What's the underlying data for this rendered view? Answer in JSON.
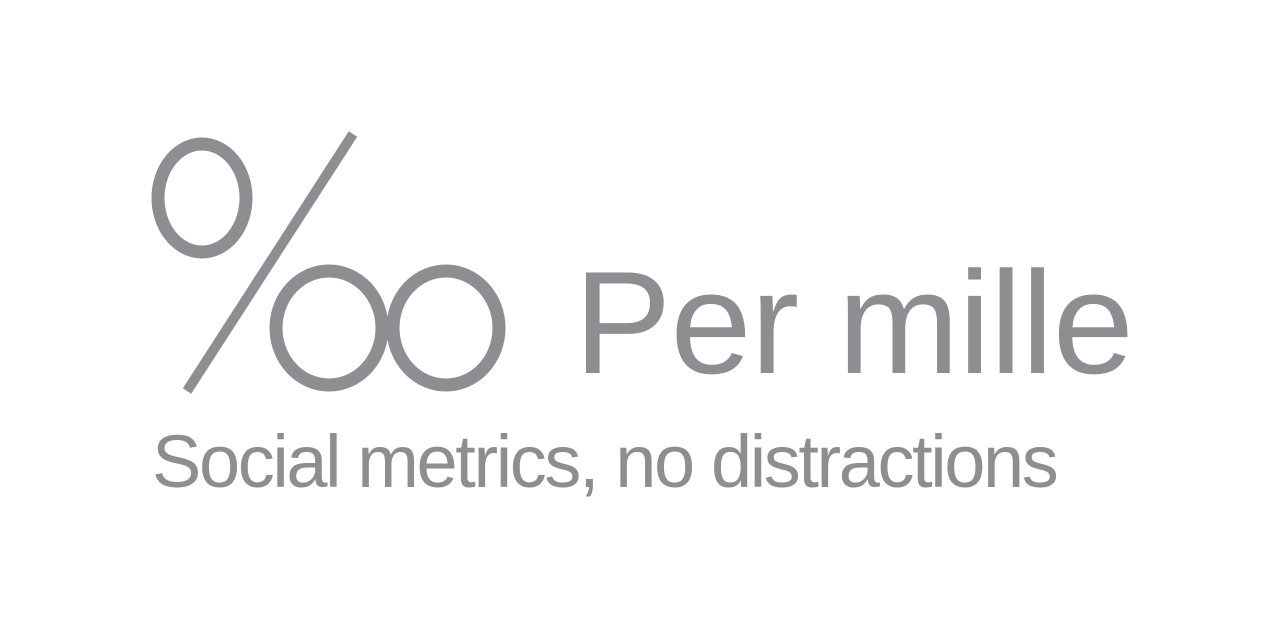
{
  "brand": {
    "symbol": "‰",
    "symbol_icon": "per-mille-sign-icon",
    "name": "Per mille",
    "tagline": "Social metrics, no distractions"
  },
  "colors": {
    "background": "#ffffff",
    "brand_gray": "#8e8e92"
  }
}
